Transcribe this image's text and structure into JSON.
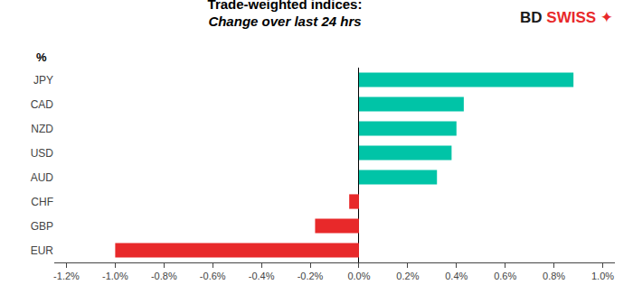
{
  "chart_data": {
    "type": "bar",
    "orientation": "horizontal",
    "title": "Trade-weighted indices:",
    "subtitle": "Change over last 24 hrs",
    "categories": [
      "JPY",
      "CAD",
      "NZD",
      "USD",
      "AUD",
      "CHF",
      "GBP",
      "EUR"
    ],
    "values": [
      0.88,
      0.43,
      0.4,
      0.38,
      0.32,
      -0.04,
      -0.18,
      -1.0
    ],
    "colors": [
      "#00C4A7",
      "#00C4A7",
      "#00C4A7",
      "#00C4A7",
      "#00C4A7",
      "#E8292A",
      "#E8292A",
      "#E8292A"
    ],
    "xlim": [
      -1.25,
      1.05
    ],
    "xticks": [
      {
        "value": -1.2,
        "label": "-1.2%"
      },
      {
        "value": -1.0,
        "label": "-1.0%"
      },
      {
        "value": -0.8,
        "label": "-0.8%"
      },
      {
        "value": -0.6,
        "label": "-0.6%"
      },
      {
        "value": -0.4,
        "label": "-0.4%"
      },
      {
        "value": -0.2,
        "label": "-0.2%"
      },
      {
        "value": 0.0,
        "label": "0.0%"
      },
      {
        "value": 0.2,
        "label": "0.2%"
      },
      {
        "value": 0.4,
        "label": "0.4%"
      },
      {
        "value": 0.6,
        "label": "0.6%"
      },
      {
        "value": 0.8,
        "label": "0.8%"
      },
      {
        "value": 1.0,
        "label": "1.0%"
      }
    ],
    "grid": false,
    "annotations": [
      {
        "text": "%"
      },
      {
        "text": "BD",
        "color": "#1a1a1a"
      },
      {
        "text": "SWISS",
        "color": "#E8292A"
      },
      {
        "text": "✦",
        "color": "#E8292A"
      }
    ]
  }
}
